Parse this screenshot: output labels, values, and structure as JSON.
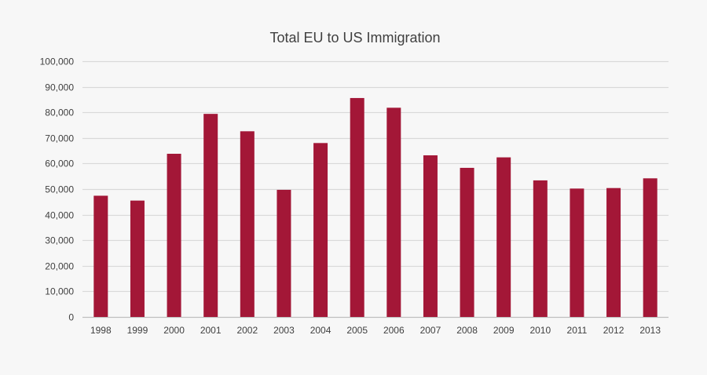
{
  "chart_data": {
    "type": "bar",
    "title": "Total EU to US Immigration",
    "xlabel": "",
    "ylabel": "",
    "categories": [
      "1998",
      "1999",
      "2000",
      "2001",
      "2002",
      "2003",
      "2004",
      "2005",
      "2006",
      "2007",
      "2008",
      "2009",
      "2010",
      "2011",
      "2012",
      "2013"
    ],
    "values": [
      47400,
      45500,
      63800,
      79400,
      72600,
      49700,
      68000,
      85600,
      81800,
      63200,
      58300,
      62400,
      53400,
      50200,
      50400,
      54200
    ],
    "ylim": [
      0,
      100000
    ],
    "yticks": [
      0,
      10000,
      20000,
      30000,
      40000,
      50000,
      60000,
      70000,
      80000,
      90000,
      100000
    ],
    "ytick_labels": [
      "0",
      "10,000",
      "20,000",
      "30,000",
      "40,000",
      "50,000",
      "60,000",
      "70,000",
      "80,000",
      "90,000",
      "100,000"
    ],
    "grid": true,
    "legend": "none",
    "colors": {
      "bar": "#a31737",
      "grid": "#d9d9d9",
      "background": "#f7f7f7"
    }
  }
}
